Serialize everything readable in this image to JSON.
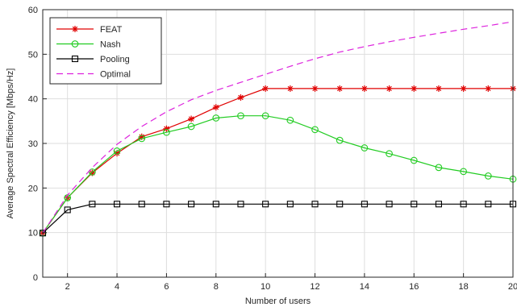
{
  "chart_data": {
    "type": "line",
    "xlabel": "Number of users",
    "ylabel": "Average Spectral Efficiency [Mbps/Hz]",
    "xlim": [
      1,
      20
    ],
    "ylim": [
      0,
      60
    ],
    "x_ticks": [
      2,
      4,
      6,
      8,
      10,
      12,
      14,
      16,
      18,
      20
    ],
    "y_ticks": [
      0,
      10,
      20,
      30,
      40,
      50,
      60
    ],
    "grid": true,
    "legend_position": "top-left",
    "x": [
      1,
      2,
      3,
      4,
      5,
      6,
      7,
      8,
      9,
      10,
      11,
      12,
      13,
      14,
      15,
      16,
      17,
      18,
      19,
      20
    ],
    "series": [
      {
        "name": "FEAT",
        "color": "#e00000",
        "marker": "asterisk",
        "dash": "solid",
        "values": [
          9.9,
          17.8,
          23.4,
          27.8,
          31.5,
          33.3,
          35.5,
          38.1,
          40.3,
          42.3,
          42.3,
          42.3,
          42.3,
          42.3,
          42.3,
          42.3,
          42.3,
          42.3,
          42.3,
          42.3
        ]
      },
      {
        "name": "Nash",
        "color": "#22cc22",
        "marker": "circle",
        "dash": "solid",
        "values": [
          9.9,
          17.8,
          23.6,
          28.3,
          31.1,
          32.5,
          33.8,
          35.7,
          36.2,
          36.2,
          35.2,
          33.1,
          30.7,
          29.0,
          27.7,
          26.2,
          24.6,
          23.7,
          22.7,
          22.0
        ]
      },
      {
        "name": "Pooling",
        "color": "#000000",
        "marker": "square",
        "dash": "solid",
        "values": [
          9.9,
          15.1,
          16.4,
          16.4,
          16.4,
          16.4,
          16.4,
          16.4,
          16.4,
          16.4,
          16.4,
          16.4,
          16.4,
          16.4,
          16.4,
          16.4,
          16.4,
          16.4,
          16.4,
          16.4
        ]
      },
      {
        "name": "Optimal",
        "color": "#dd22dd",
        "marker": "none",
        "dash": "dashed",
        "values": [
          9.9,
          18.4,
          24.6,
          29.8,
          33.8,
          37.1,
          39.8,
          41.9,
          43.7,
          45.5,
          47.3,
          49.0,
          50.5,
          51.7,
          52.8,
          53.8,
          54.7,
          55.6,
          56.4,
          57.3
        ]
      }
    ]
  }
}
